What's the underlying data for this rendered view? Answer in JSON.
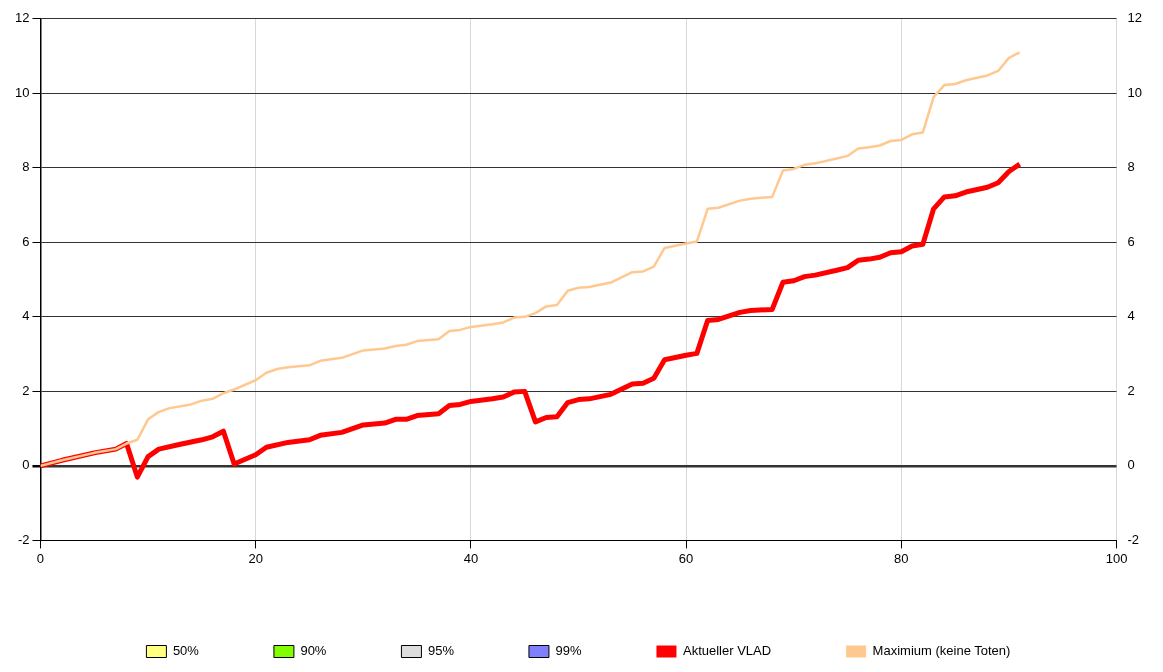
{
  "chart_data": {
    "type": "line",
    "xlim": [
      0,
      100
    ],
    "xticks": [
      0,
      20,
      40,
      60,
      80,
      100
    ],
    "ylim": [
      -2,
      12
    ],
    "yticks": [
      -2,
      0,
      2,
      4,
      6,
      8,
      10,
      12
    ],
    "y2lim": [
      -2,
      12
    ],
    "y2ticks": [
      -2,
      0,
      2,
      4,
      6,
      8,
      10,
      12
    ],
    "grid": true,
    "legend": "bottom",
    "marker": "none",
    "line_style": "solid",
    "series": [
      {
        "name": "50%",
        "type": "area",
        "color": "#ffff80"
      },
      {
        "name": "90%",
        "type": "area",
        "color": "#80ff00"
      },
      {
        "name": "95%",
        "type": "area",
        "color": "#dddddd"
      },
      {
        "name": "99%",
        "type": "area",
        "color": "#8080ff"
      },
      {
        "name": "Aktueller VLAD",
        "color": "#ff0000",
        "x": [
          0,
          2,
          5,
          7,
          8,
          9,
          10,
          11,
          13,
          15,
          16,
          17,
          18,
          20,
          21,
          23,
          25,
          26,
          28,
          29,
          30,
          32,
          33,
          34,
          35,
          37,
          38,
          39,
          40,
          42,
          43,
          44,
          45,
          46,
          47,
          48,
          49,
          50,
          51,
          53,
          55,
          56,
          57,
          58,
          60,
          61,
          62,
          63,
          65,
          66,
          68,
          69,
          70,
          71,
          72,
          74,
          75,
          76,
          77,
          78,
          79,
          80,
          81,
          82,
          83,
          84,
          85,
          86,
          88,
          89,
          90,
          91
        ],
        "values": [
          0,
          0.15,
          0.35,
          0.45,
          0.6,
          -0.3,
          0.25,
          0.45,
          0.58,
          0.7,
          0.78,
          0.93,
          0.05,
          0.3,
          0.5,
          0.63,
          0.7,
          0.82,
          0.9,
          1.0,
          1.1,
          1.15,
          1.25,
          1.25,
          1.35,
          1.4,
          1.62,
          1.65,
          1.73,
          1.8,
          1.85,
          1.98,
          2.0,
          1.18,
          1.3,
          1.32,
          1.7,
          1.78,
          1.8,
          1.92,
          2.2,
          2.22,
          2.35,
          2.85,
          2.97,
          3.02,
          3.9,
          3.93,
          4.12,
          4.17,
          4.2,
          4.93,
          4.97,
          5.08,
          5.12,
          5.25,
          5.32,
          5.52,
          5.55,
          5.6,
          5.72,
          5.75,
          5.9,
          5.95,
          6.9,
          7.22,
          7.25,
          7.35,
          7.48,
          7.6,
          7.9,
          8.1
        ]
      },
      {
        "name": "Maximium (keine Toten)",
        "color": "#ffc890",
        "x": [
          0,
          2,
          5,
          7,
          8,
          9,
          10,
          11,
          12,
          14,
          15,
          16,
          17,
          18,
          20,
          21,
          22,
          23,
          25,
          26,
          28,
          29,
          30,
          32,
          33,
          34,
          35,
          37,
          38,
          39,
          40,
          42,
          43,
          44,
          45,
          46,
          47,
          48,
          49,
          50,
          51,
          53,
          55,
          56,
          57,
          58,
          60,
          61,
          62,
          63,
          65,
          66,
          68,
          69,
          70,
          71,
          72,
          74,
          75,
          76,
          77,
          78,
          79,
          80,
          81,
          82,
          83,
          84,
          85,
          86,
          88,
          89,
          90,
          91
        ],
        "values": [
          0,
          0.15,
          0.35,
          0.45,
          0.6,
          0.7,
          1.25,
          1.45,
          1.55,
          1.65,
          1.75,
          1.8,
          1.95,
          2.05,
          2.3,
          2.5,
          2.6,
          2.65,
          2.7,
          2.82,
          2.9,
          3.0,
          3.1,
          3.15,
          3.22,
          3.25,
          3.35,
          3.4,
          3.62,
          3.65,
          3.73,
          3.8,
          3.85,
          3.98,
          4.0,
          4.1,
          4.28,
          4.32,
          4.7,
          4.78,
          4.8,
          4.92,
          5.2,
          5.22,
          5.35,
          5.85,
          5.97,
          6.02,
          6.9,
          6.93,
          7.12,
          7.17,
          7.22,
          7.93,
          7.97,
          8.08,
          8.12,
          8.25,
          8.32,
          8.52,
          8.55,
          8.6,
          8.72,
          8.75,
          8.9,
          8.95,
          9.9,
          10.22,
          10.25,
          10.35,
          10.48,
          10.6,
          10.95,
          11.1
        ]
      }
    ]
  }
}
